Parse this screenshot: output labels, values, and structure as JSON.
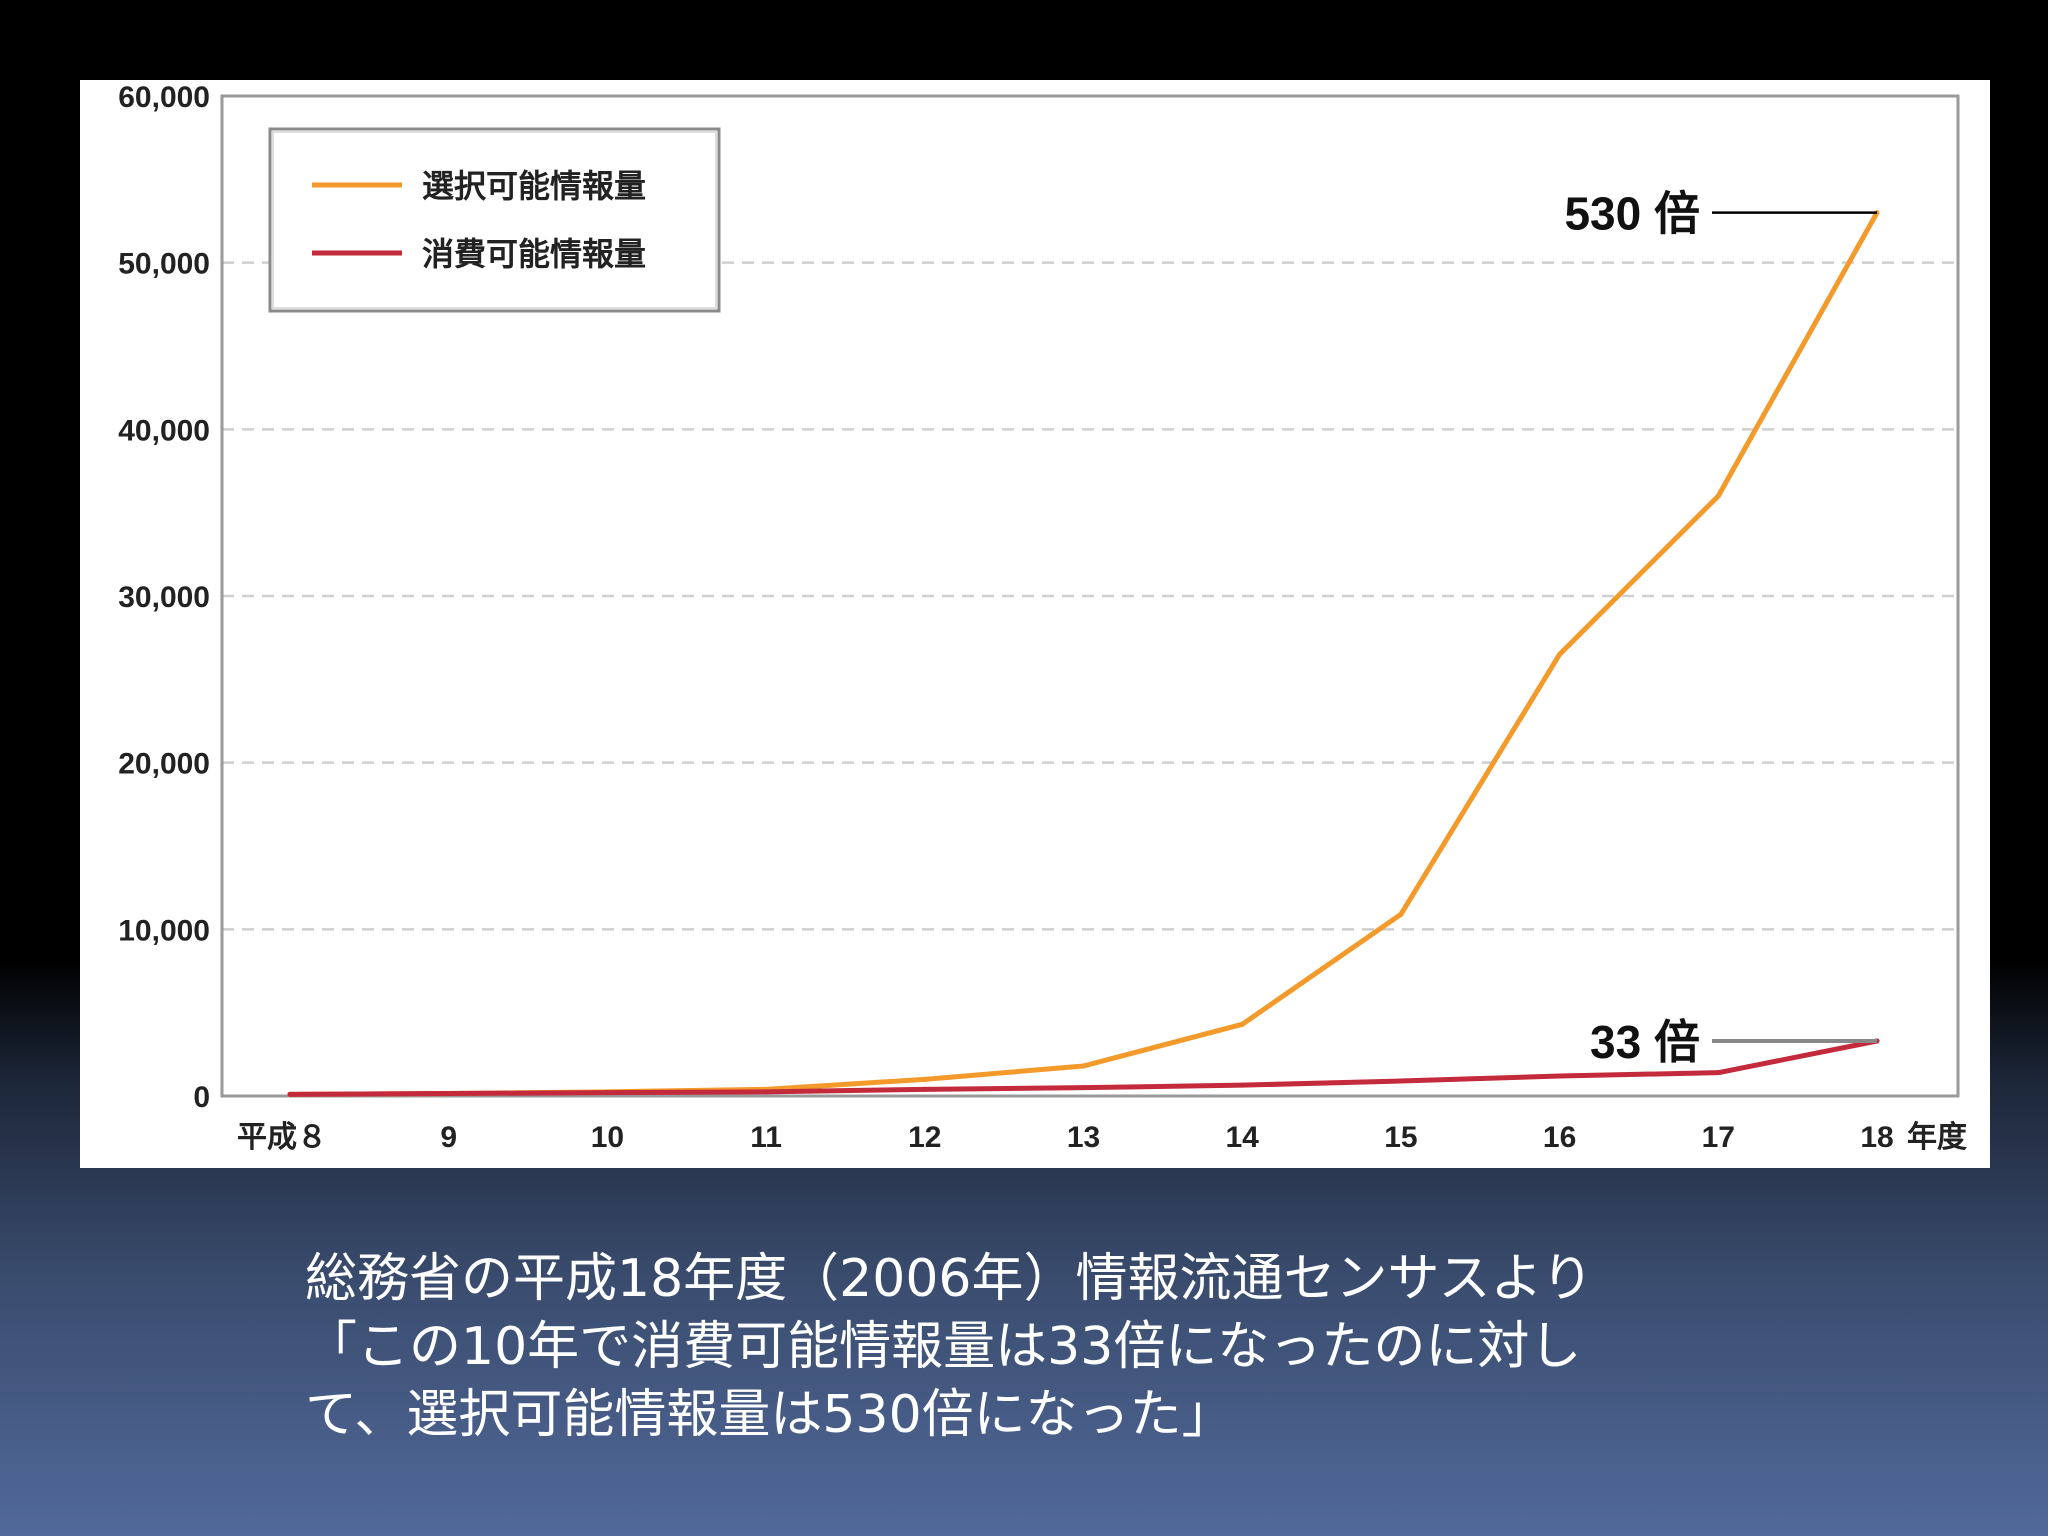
{
  "chart_data": {
    "type": "line",
    "x": [
      "平成８",
      "9",
      "10",
      "11",
      "12",
      "13",
      "14",
      "15",
      "16",
      "17",
      "18"
    ],
    "xlabel": "年度",
    "ylim": [
      0,
      60000
    ],
    "yticks": [
      "0",
      "10,000",
      "20,000",
      "30,000",
      "40,000",
      "50,000",
      "60,000"
    ],
    "ytick_values": [
      0,
      10000,
      20000,
      30000,
      40000,
      50000,
      60000
    ],
    "grid": true,
    "legend": "top-left",
    "series": [
      {
        "name": "選択可能情報量",
        "color": "#f39a2b",
        "values": [
          100,
          150,
          250,
          400,
          1000,
          1800,
          4300,
          10900,
          26500,
          36000,
          53000
        ]
      },
      {
        "name": "消費可能情報量",
        "color": "#c32a3b",
        "values": [
          100,
          150,
          200,
          250,
          400,
          500,
          650,
          900,
          1200,
          1400,
          3300
        ]
      }
    ],
    "annotations": [
      {
        "text": "530 倍",
        "series": 0,
        "index": 10,
        "line_color": "#000000"
      },
      {
        "text": "33 倍",
        "series": 1,
        "index": 10,
        "line_color": "#888888"
      }
    ]
  },
  "caption": {
    "lines": [
      "総務省の平成18年度（2006年）情報流通センサスより",
      "「この10年で消費可能情報量は33倍になったのに対し",
      "て、選択可能情報量は530倍になった」"
    ]
  }
}
